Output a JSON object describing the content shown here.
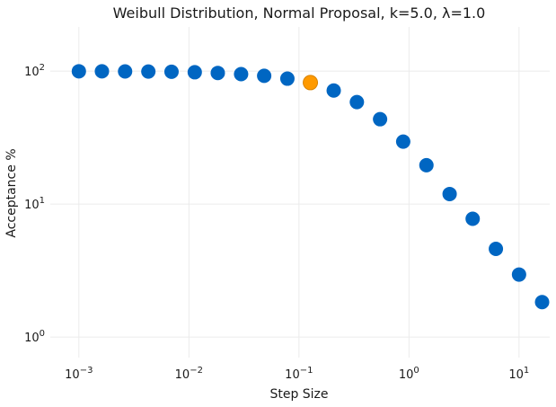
{
  "chart_data": {
    "type": "scatter",
    "title": "Weibull Distribution, Normal Proposal, k=5.0, λ=1.0",
    "xlabel": "Step Size",
    "ylabel": "Acceptance %",
    "xscale": "log",
    "yscale": "log",
    "xlim": [
      0.00055,
      19
    ],
    "ylim": [
      0.7,
      215
    ],
    "grid": true,
    "x_ticks": [
      {
        "value": 0.001,
        "base": "10",
        "exp": "−3"
      },
      {
        "value": 0.01,
        "base": "10",
        "exp": "−2"
      },
      {
        "value": 0.1,
        "base": "10",
        "exp": "−1"
      },
      {
        "value": 1,
        "base": "10",
        "exp": "0"
      },
      {
        "value": 10,
        "base": "10",
        "exp": "1"
      }
    ],
    "y_ticks": [
      {
        "value": 1,
        "base": "10",
        "exp": "0"
      },
      {
        "value": 10,
        "base": "10",
        "exp": "1"
      },
      {
        "value": 100,
        "base": "10",
        "exp": "2"
      }
    ],
    "colors": {
      "default": "#0066c2",
      "highlight": "#ff9a00"
    },
    "points": [
      {
        "x": 0.001,
        "y": 99.8
      },
      {
        "x": 0.00162,
        "y": 99.7
      },
      {
        "x": 0.00263,
        "y": 99.5
      },
      {
        "x": 0.00428,
        "y": 99.3
      },
      {
        "x": 0.00695,
        "y": 98.9
      },
      {
        "x": 0.0113,
        "y": 98.1
      },
      {
        "x": 0.0183,
        "y": 96.9
      },
      {
        "x": 0.0298,
        "y": 95.0
      },
      {
        "x": 0.0483,
        "y": 92.2
      },
      {
        "x": 0.0785,
        "y": 87.8
      },
      {
        "x": 0.127,
        "y": 82.0,
        "highlight": true
      },
      {
        "x": 0.207,
        "y": 71.5
      },
      {
        "x": 0.336,
        "y": 58.5
      },
      {
        "x": 0.546,
        "y": 43.5
      },
      {
        "x": 0.886,
        "y": 29.5
      },
      {
        "x": 1.44,
        "y": 19.6
      },
      {
        "x": 2.34,
        "y": 11.9
      },
      {
        "x": 3.79,
        "y": 7.75
      },
      {
        "x": 6.16,
        "y": 4.6
      },
      {
        "x": 10.0,
        "y": 2.95
      },
      {
        "x": 16.2,
        "y": 1.83
      }
    ]
  }
}
